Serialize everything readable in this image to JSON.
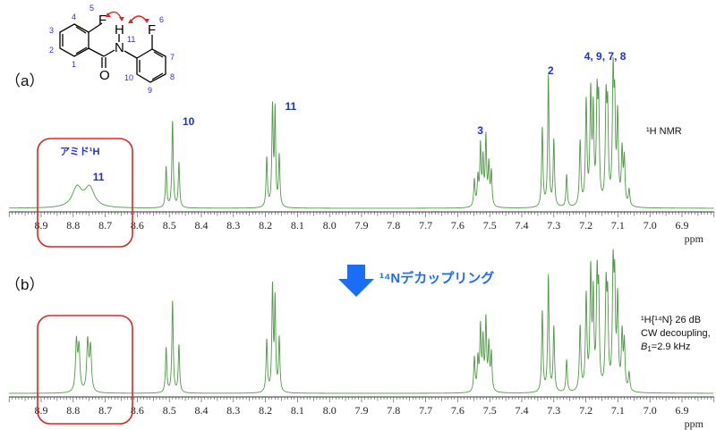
{
  "colors": {
    "spectrum": "#4f9a45",
    "label": "#1c2fe0",
    "box": "#e8201e",
    "arrow": "#1a6ef5",
    "atom_number": "#2b2bff"
  },
  "molecule": {
    "atoms": {
      "F1": "F",
      "F2": "F",
      "N": "N",
      "H": "H",
      "O": "O"
    },
    "numbers": [
      "1",
      "2",
      "3",
      "4",
      "5",
      "6",
      "7",
      "8",
      "9",
      "10",
      "11"
    ]
  },
  "panels": {
    "a": {
      "label": "（a）",
      "note": "¹H NMR"
    },
    "b": {
      "label": "（b）",
      "note_line1": "¹H{¹⁴N}  26 dB",
      "note_line2": "CW decoupling,",
      "note_line3_italic": "B",
      "note_line3_sub": "1",
      "note_line3_rest": "=2.9 kHz"
    }
  },
  "decoupling_arrow": {
    "icon": "down-arrow-icon",
    "text": "¹⁴Nデカップリング"
  },
  "amide_label": "アミド¹H",
  "chart_data": [
    {
      "type": "line",
      "panel": "a",
      "title": "",
      "xlabel": "ppm",
      "xlim": [
        9.0,
        6.8
      ],
      "x_reversed": true,
      "tick_labels": [
        "8.9",
        "8.8",
        "8.7",
        "8.6",
        "8.5",
        "8.4",
        "8.3",
        "8.2",
        "8.1",
        "8.0",
        "7.9",
        "7.8",
        "7.7",
        "7.6",
        "7.5",
        "7.4",
        "7.3",
        "7.2",
        "7.1",
        "7.0",
        "6.9"
      ],
      "grid": false,
      "peaks_ppm_intensity_width": [
        [
          8.788,
          22,
          0.018
        ],
        [
          8.749,
          22,
          0.018
        ],
        [
          8.51,
          45,
          0.0025
        ],
        [
          8.49,
          96,
          0.0025
        ],
        [
          8.47,
          50,
          0.0025
        ],
        [
          8.196,
          55,
          0.0025
        ],
        [
          8.178,
          110,
          0.0025
        ],
        [
          8.17,
          105,
          0.0022
        ],
        [
          8.157,
          57,
          0.0025
        ],
        [
          7.548,
          30,
          0.0025
        ],
        [
          7.537,
          31,
          0.0025
        ],
        [
          7.529,
          66,
          0.0025
        ],
        [
          7.521,
          50,
          0.0025
        ],
        [
          7.512,
          76,
          0.0025
        ],
        [
          7.503,
          45,
          0.0025
        ],
        [
          7.495,
          38,
          0.0025
        ],
        [
          7.336,
          88,
          0.0025
        ],
        [
          7.317,
          146,
          0.0025
        ],
        [
          7.3,
          74,
          0.0025
        ],
        [
          7.26,
          36,
          0.0025
        ],
        [
          7.218,
          72,
          0.0028
        ],
        [
          7.199,
          115,
          0.0028
        ],
        [
          7.185,
          122,
          0.0028
        ],
        [
          7.177,
          100,
          0.0025
        ],
        [
          7.165,
          114,
          0.0028
        ],
        [
          7.16,
          100,
          0.0025
        ],
        [
          7.137,
          112,
          0.0028
        ],
        [
          7.132,
          95,
          0.0025
        ],
        [
          7.115,
          140,
          0.0028
        ],
        [
          7.11,
          96,
          0.0025
        ],
        [
          7.101,
          98,
          0.0028
        ],
        [
          7.087,
          60,
          0.0028
        ],
        [
          7.08,
          50,
          0.0025
        ],
        [
          7.065,
          18,
          0.0028
        ]
      ],
      "peak_labels": [
        {
          "text": "11",
          "ppm": 8.75
        },
        {
          "text": "10",
          "ppm": 8.47
        },
        {
          "text": "11",
          "ppm": 8.15
        },
        {
          "text": "3",
          "ppm": 7.55
        },
        {
          "text": "2",
          "ppm": 7.33
        },
        {
          "text": "4, 9, 7, 8",
          "ppm": 7.14
        }
      ]
    },
    {
      "type": "line",
      "panel": "b",
      "title": "",
      "xlabel": "ppm",
      "xlim": [
        9.0,
        6.8
      ],
      "x_reversed": true,
      "tick_labels": [
        "8.9",
        "8.8",
        "8.7",
        "8.6",
        "8.5",
        "8.4",
        "8.3",
        "8.2",
        "8.1",
        "8.0",
        "7.9",
        "7.8",
        "7.7",
        "7.6",
        "7.5",
        "7.4",
        "7.3",
        "7.2",
        "7.1",
        "7.0",
        "6.9"
      ],
      "grid": false,
      "peaks_ppm_intensity_width": [
        [
          8.79,
          55,
          0.0035
        ],
        [
          8.782,
          48,
          0.0035
        ],
        [
          8.755,
          56,
          0.0035
        ],
        [
          8.746,
          49,
          0.0035
        ],
        [
          8.51,
          50,
          0.0025
        ],
        [
          8.49,
          102,
          0.0025
        ],
        [
          8.47,
          53,
          0.0025
        ],
        [
          8.196,
          58,
          0.0025
        ],
        [
          8.178,
          116,
          0.0025
        ],
        [
          8.17,
          100,
          0.0022
        ],
        [
          8.157,
          60,
          0.0025
        ],
        [
          7.548,
          38,
          0.0025
        ],
        [
          7.537,
          35,
          0.0025
        ],
        [
          7.529,
          70,
          0.0025
        ],
        [
          7.521,
          55,
          0.0025
        ],
        [
          7.512,
          78,
          0.0025
        ],
        [
          7.503,
          50,
          0.0025
        ],
        [
          7.495,
          42,
          0.0025
        ],
        [
          7.336,
          90,
          0.0025
        ],
        [
          7.317,
          130,
          0.0025
        ],
        [
          7.3,
          72,
          0.0025
        ],
        [
          7.26,
          36,
          0.0025
        ],
        [
          7.218,
          72,
          0.0028
        ],
        [
          7.199,
          105,
          0.0028
        ],
        [
          7.185,
          130,
          0.0028
        ],
        [
          7.177,
          100,
          0.0025
        ],
        [
          7.165,
          120,
          0.0028
        ],
        [
          7.16,
          95,
          0.0025
        ],
        [
          7.137,
          110,
          0.0028
        ],
        [
          7.132,
          90,
          0.0025
        ],
        [
          7.115,
          130,
          0.0028
        ],
        [
          7.11,
          105,
          0.0025
        ],
        [
          7.101,
          100,
          0.0028
        ],
        [
          7.087,
          62,
          0.0028
        ],
        [
          7.08,
          52,
          0.0025
        ],
        [
          7.065,
          20,
          0.0028
        ]
      ]
    }
  ]
}
